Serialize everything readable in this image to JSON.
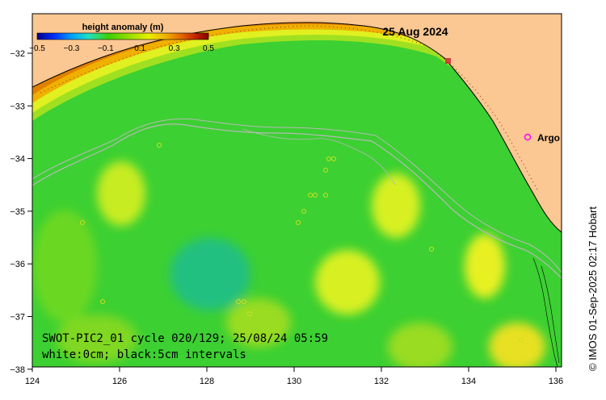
{
  "date_label": "25 Aug 2024",
  "colorbar": {
    "title": "height anomaly (m)",
    "ticks": [
      "-0.5",
      "-0.3",
      "-0.1",
      "0.1",
      "0.3",
      "0.5"
    ],
    "colors": [
      "#00008f",
      "#0030ff",
      "#00a0ff",
      "#20e0c0",
      "#40d000",
      "#a0e000",
      "#e8f000",
      "#f0b000",
      "#e06000",
      "#c02000",
      "#800000"
    ]
  },
  "axes": {
    "x_ticks": [
      "124",
      "126",
      "128",
      "130",
      "132",
      "134",
      "136"
    ],
    "y_ticks": [
      "-32",
      "-33",
      "-34",
      "-35",
      "-36",
      "-37",
      "-38"
    ]
  },
  "info_line1": "SWOT-PIC2_01 cycle 020/129; 25/08/24 05:59",
  "info_line2": "white:0cm; black:5cm intervals",
  "argo_label": "Argo",
  "credit": "© IMOS 01-Sep-2025 02:17 Hobart",
  "colors": {
    "land": "#fbc792",
    "ocean_base": "#38d030",
    "argo_marker": "#ff00ff"
  }
}
